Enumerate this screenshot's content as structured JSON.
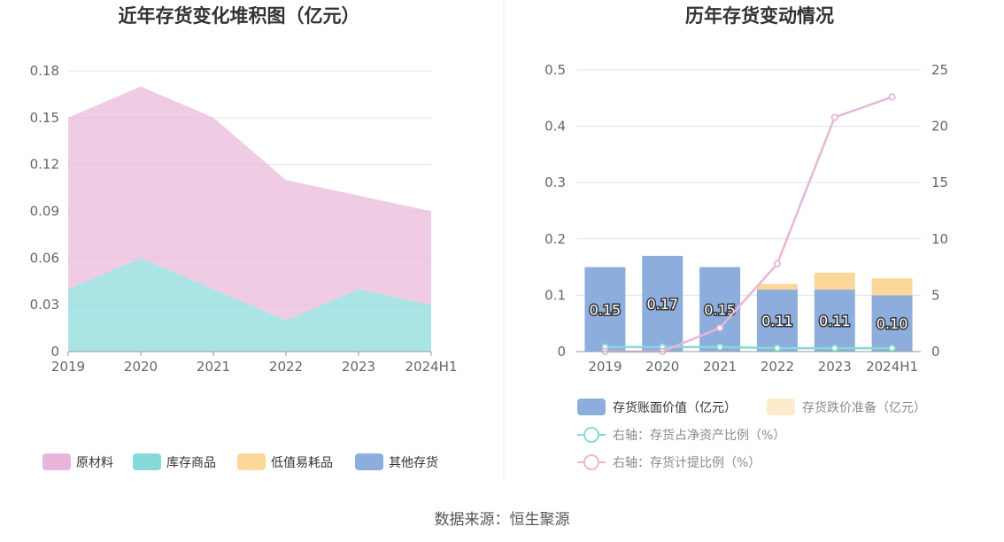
{
  "source": "数据来源：恒生聚源",
  "colors": {
    "raw_material": "#E8B6D8",
    "finished_goods": "#86D9D9",
    "low_value": "#FDD69A",
    "other": "#8DAEDD",
    "book_value": "#8DAEDD",
    "impairment": "#FDD69A",
    "ratio_net": "#86D9D9",
    "ratio_provision": "#E8B6D8",
    "grid": "#E0E3EE",
    "axis": "#999999"
  },
  "chart_data": [
    {
      "type": "area",
      "title": "近年存货变化堆积图（亿元）",
      "categories": [
        "2019",
        "2020",
        "2021",
        "2022",
        "2023",
        "2024H1"
      ],
      "stacked": true,
      "ylim": [
        0,
        0.18
      ],
      "yticks": [
        "0",
        "0.03",
        "0.06",
        "0.09",
        "0.12",
        "0.15",
        "0.18"
      ],
      "grid": true,
      "legend_position": "bottom",
      "series": [
        {
          "name": "库存商品",
          "color_key": "finished_goods",
          "values": [
            0.04,
            0.06,
            0.04,
            0.02,
            0.04,
            0.03
          ]
        },
        {
          "name": "原材料",
          "color_key": "raw_material",
          "values": [
            0.11,
            0.11,
            0.11,
            0.09,
            0.06,
            0.06
          ]
        },
        {
          "name": "低值易耗品",
          "color_key": "low_value",
          "values": [
            0,
            0,
            0,
            0,
            0,
            0
          ]
        },
        {
          "name": "其他存货",
          "color_key": "other",
          "values": [
            0,
            0,
            0,
            0,
            0,
            0
          ]
        }
      ],
      "legend": [
        {
          "name": "原材料",
          "color_key": "raw_material"
        },
        {
          "name": "库存商品",
          "color_key": "finished_goods"
        },
        {
          "name": "低值易耗品",
          "color_key": "low_value"
        },
        {
          "name": "其他存货",
          "color_key": "other"
        }
      ]
    },
    {
      "type": "bar",
      "title": "历年存货变动情况",
      "categories": [
        "2019",
        "2020",
        "2021",
        "2022",
        "2023",
        "2024H1"
      ],
      "ylim": [
        0,
        0.5
      ],
      "yticks": [
        "0",
        "0.1",
        "0.2",
        "0.3",
        "0.4",
        "0.5"
      ],
      "y2lim": [
        0,
        25
      ],
      "y2ticks": [
        "0",
        "5",
        "10",
        "15",
        "20",
        "25"
      ],
      "grid": true,
      "legend_position": "bottom",
      "bar_labels": [
        "0.15",
        "0.17",
        "0.15",
        "0.11",
        "0.11",
        "0.10"
      ],
      "bars": [
        {
          "name": "存货账面价值（亿元）",
          "color_key": "book_value",
          "values": [
            0.15,
            0.17,
            0.15,
            0.11,
            0.11,
            0.1
          ]
        },
        {
          "name": "存货跌价准备（亿元）",
          "color_key": "impairment",
          "values": [
            0,
            0,
            0,
            0.01,
            0.03,
            0.03
          ]
        }
      ],
      "lines": [
        {
          "name": "右轴：存货占净资产比例（%）",
          "color_key": "ratio_net",
          "axis": "right",
          "values": [
            0.4,
            0.4,
            0.4,
            0.3,
            0.3,
            0.3
          ]
        },
        {
          "name": "右轴：存货计提比例（%）",
          "color_key": "ratio_provision",
          "axis": "right",
          "values": [
            0,
            0,
            2.1,
            7.8,
            20.8,
            22.6
          ]
        }
      ]
    }
  ]
}
